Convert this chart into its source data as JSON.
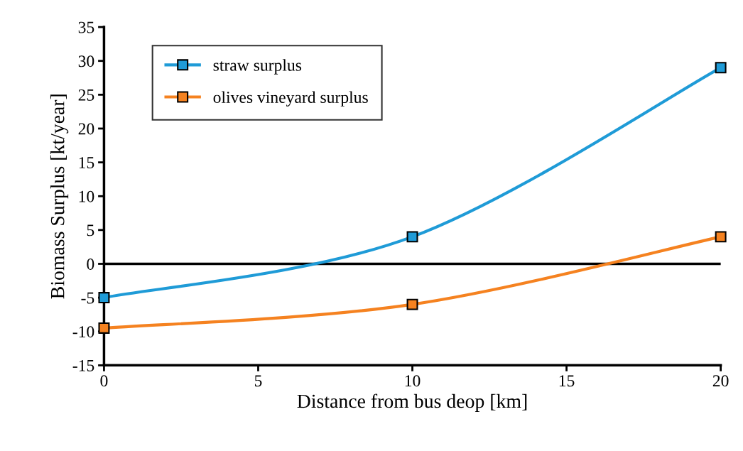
{
  "chart_data": {
    "type": "line",
    "xlabel": "Distance from bus deop [km]",
    "ylabel": "Biomass Surplus [kt/year]",
    "x": [
      0,
      10,
      20
    ],
    "series": [
      {
        "name": "straw surplus",
        "color": "#1f9bd7",
        "values": [
          -5,
          4,
          29
        ]
      },
      {
        "name": "olives vineyard surplus",
        "color": "#f58220",
        "values": [
          -9.5,
          -6,
          4
        ]
      }
    ],
    "xlim": [
      0,
      20
    ],
    "xticks": [
      0,
      5,
      10,
      15,
      20
    ],
    "ylim": [
      -15,
      35
    ],
    "yticks": [
      -15,
      -10,
      -5,
      0,
      5,
      10,
      15,
      20,
      25,
      30,
      35
    ],
    "ref_lines": [
      {
        "axis": "y",
        "value": 0,
        "color": "#000000"
      }
    ],
    "grid": false,
    "legend": "top left",
    "marker": "square",
    "line_style": "solid"
  }
}
